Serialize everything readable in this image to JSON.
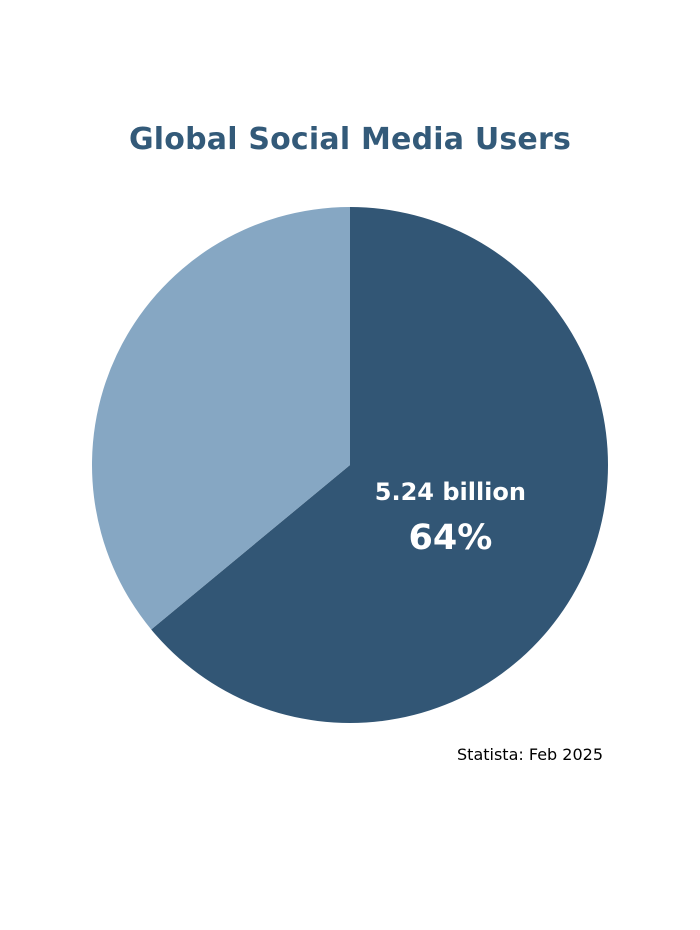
{
  "chart_data": {
    "type": "pie",
    "title": "Global Social Media Users",
    "slices": [
      {
        "value_label": "5.24 billion",
        "percent": 64,
        "percent_label": "64%",
        "color": "#325675",
        "labeled": true
      },
      {
        "percent": 36,
        "color": "#86a7c3",
        "labeled": false
      }
    ],
    "start": "12 o'clock, clockwise",
    "source": "Statista: Feb 2025"
  }
}
